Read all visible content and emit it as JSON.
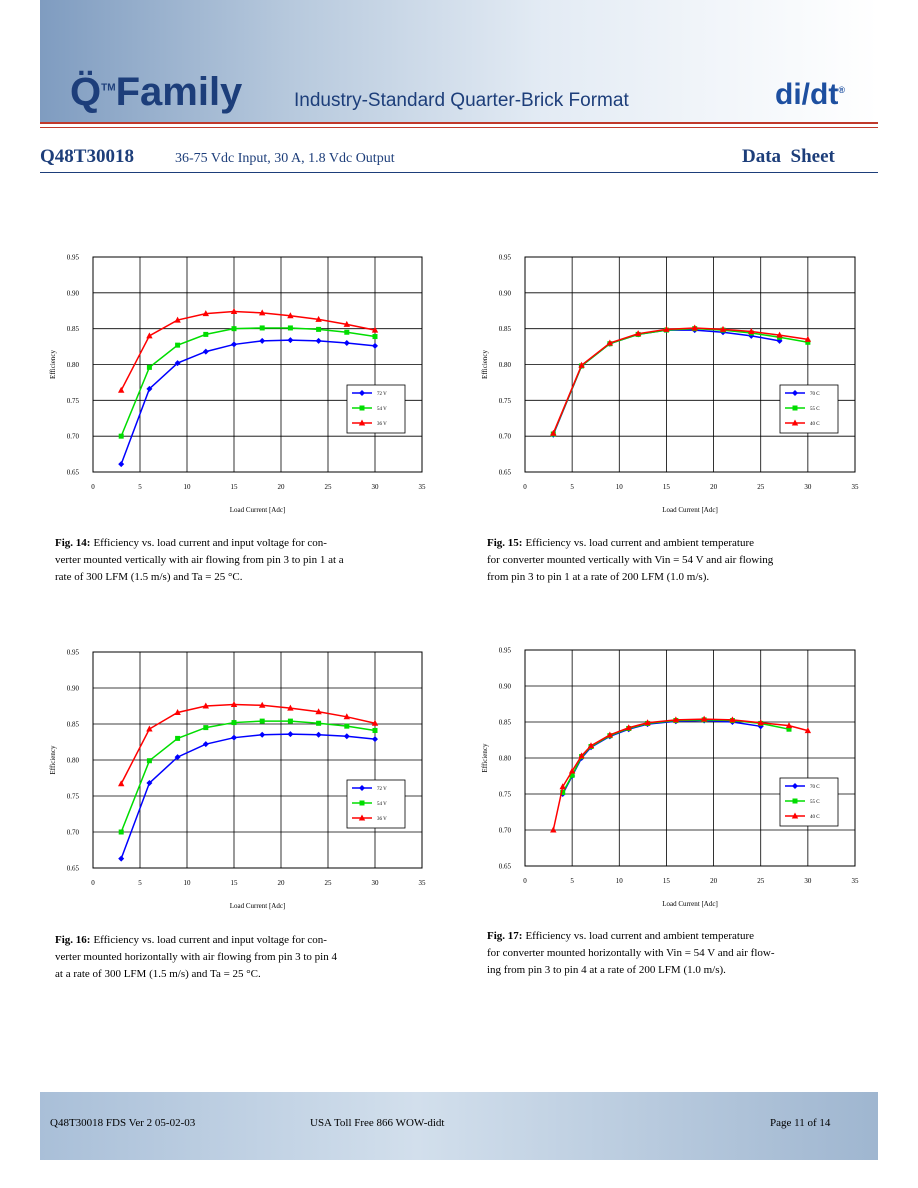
{
  "header": {
    "logo": "Q̈",
    "logo_tm": "TM",
    "logo_family": "Family",
    "tagline": "Industry-Standard Quarter-Brick Format",
    "brand": "di/dt",
    "brand_mark": "®",
    "model": "Q48T30018",
    "description": "36-75 Vdc Input, 30 A, 1.8 Vdc Output",
    "doc_type": "Data  Sheet"
  },
  "chart_data": [
    {
      "type": "line",
      "y_label": "Efficiency",
      "x_label": "Load Current [Adc]",
      "legend": "lower right",
      "grid": true,
      "x": [
        3,
        6,
        9,
        12,
        15,
        18,
        21,
        24,
        27,
        30
      ],
      "xlim": [
        0,
        35
      ],
      "xticks": [
        0,
        5,
        10,
        15,
        20,
        25,
        30,
        35
      ],
      "ylim": [
        0.65,
        0.95
      ],
      "yticks": [
        0.65,
        {
          "value": 0.7,
          "label": "0.70"
        },
        0.75,
        {
          "value": 0.8,
          "label": "0.80"
        },
        0.85,
        {
          "value": 0.9,
          "label": "0.90"
        },
        0.95
      ],
      "series": [
        {
          "name": "72 V",
          "color": "#0000ff",
          "marker": "diamond",
          "values": [
            0.661,
            0.766,
            0.802,
            0.818,
            0.828,
            0.833,
            0.834,
            0.833,
            0.83,
            0.826
          ]
        },
        {
          "name": "54 V",
          "color": "#00dd00",
          "marker": "square",
          "values": [
            0.7,
            0.796,
            0.827,
            0.842,
            0.85,
            0.851,
            0.851,
            0.849,
            0.845,
            0.839
          ]
        },
        {
          "name": "36 V",
          "color": "#ff0000",
          "marker": "triangle",
          "values": [
            0.764,
            0.84,
            0.862,
            0.871,
            0.874,
            0.872,
            0.868,
            0.863,
            0.856,
            0.848
          ]
        }
      ]
    },
    {
      "type": "line",
      "y_label": "Efficiency",
      "x_label": "Load Current [Adc]",
      "legend": "lower right",
      "grid": true,
      "x": [
        3,
        6,
        9,
        12,
        15,
        18,
        21,
        24,
        27,
        30
      ],
      "xlim": [
        0,
        35
      ],
      "xticks": [
        0,
        5,
        10,
        15,
        20,
        25,
        30,
        35
      ],
      "ylim": [
        0.65,
        0.95
      ],
      "yticks": [
        0.65,
        {
          "value": 0.7,
          "label": "0.70"
        },
        0.75,
        {
          "value": 0.8,
          "label": "0.80"
        },
        0.85,
        {
          "value": 0.9,
          "label": "0.90"
        },
        0.95
      ],
      "series": [
        {
          "name": "70 C",
          "color": "#0000ff",
          "marker": "diamond",
          "values": [
            0.702,
            0.798,
            0.829,
            0.842,
            0.848,
            0.848,
            0.845,
            0.84,
            0.833,
            null
          ]
        },
        {
          "name": "55 C",
          "color": "#00dd00",
          "marker": "square",
          "values": [
            0.703,
            0.798,
            0.829,
            0.842,
            0.848,
            0.85,
            0.848,
            0.844,
            0.838,
            0.831
          ]
        },
        {
          "name": "40 C",
          "color": "#ff0000",
          "marker": "triangle",
          "values": [
            0.704,
            0.799,
            0.83,
            0.843,
            0.849,
            0.851,
            0.849,
            0.846,
            0.841,
            0.835
          ]
        }
      ]
    },
    {
      "type": "line",
      "y_label": "Efficiency",
      "x_label": "Load Current [Adc]",
      "legend": "lower right",
      "grid": true,
      "x": [
        3,
        6,
        9,
        12,
        15,
        18,
        21,
        24,
        27,
        30
      ],
      "xlim": [
        0,
        35
      ],
      "xticks": [
        0,
        5,
        10,
        15,
        20,
        25,
        30,
        35
      ],
      "ylim": [
        0.65,
        0.95
      ],
      "yticks": [
        0.65,
        {
          "value": 0.7,
          "label": "0.70"
        },
        0.75,
        {
          "value": 0.8,
          "label": "0.80"
        },
        0.85,
        {
          "value": 0.9,
          "label": "0.90"
        },
        0.95
      ],
      "series": [
        {
          "name": "72 V",
          "color": "#0000ff",
          "marker": "diamond",
          "values": [
            0.663,
            0.768,
            0.804,
            0.822,
            0.831,
            0.835,
            0.836,
            0.835,
            0.833,
            0.829
          ]
        },
        {
          "name": "54 V",
          "color": "#00dd00",
          "marker": "square",
          "values": [
            0.7,
            0.799,
            0.83,
            0.845,
            0.852,
            0.854,
            0.854,
            0.851,
            0.847,
            0.841
          ]
        },
        {
          "name": "36 V",
          "color": "#ff0000",
          "marker": "triangle",
          "values": [
            0.767,
            0.843,
            0.866,
            0.875,
            0.877,
            0.876,
            0.872,
            0.867,
            0.86,
            0.851
          ]
        }
      ]
    },
    {
      "type": "line",
      "y_label": "Efficiency",
      "x_label": "Load Current [Adc]",
      "legend": "lower right",
      "grid": true,
      "x": [
        3,
        4,
        5,
        6,
        7,
        9,
        11,
        13,
        16,
        19,
        22,
        25,
        28,
        30
      ],
      "xlim": [
        0,
        35
      ],
      "xticks": [
        0,
        5,
        10,
        15,
        20,
        25,
        30,
        35
      ],
      "ylim": [
        0.65,
        0.95
      ],
      "yticks": [
        0.65,
        {
          "value": 0.7,
          "label": "0.70"
        },
        0.75,
        {
          "value": 0.8,
          "label": "0.80"
        },
        0.85,
        {
          "value": 0.9,
          "label": "0.90"
        },
        0.95
      ],
      "series": [
        {
          "name": "70 C",
          "color": "#0000ff",
          "marker": "diamond",
          "values": [
            null,
            0.75,
            0.775,
            0.8,
            0.815,
            0.83,
            0.84,
            0.847,
            0.851,
            0.852,
            0.85,
            0.844,
            null,
            null
          ]
        },
        {
          "name": "55 C",
          "color": "#00dd00",
          "marker": "square",
          "values": [
            null,
            0.752,
            0.776,
            0.802,
            0.816,
            0.831,
            0.841,
            0.848,
            0.852,
            0.853,
            0.852,
            0.848,
            0.84,
            null
          ]
        },
        {
          "name": "40 C",
          "color": "#ff0000",
          "marker": "triangle",
          "values": [
            0.7,
            0.76,
            0.782,
            0.803,
            0.817,
            0.832,
            0.842,
            0.849,
            0.853,
            0.854,
            0.853,
            0.849,
            0.845,
            0.838
          ]
        }
      ]
    }
  ],
  "captions": [
    {
      "label": "Fig. 14:",
      "lines": [
        "Efficiency vs. load current and input voltage for con-",
        "verter mounted vertically with air flowing from pin 3 to pin 1 at a",
        "rate of 300 LFM (1.5 m/s) and Ta = 25 °C."
      ]
    },
    {
      "label": "Fig. 15:",
      "lines": [
        "Efficiency vs. load current and ambient temperature",
        "for converter mounted vertically with Vin = 54 V and air flowing",
        "from pin 3 to pin 1 at a rate of 200 LFM (1.0 m/s)."
      ]
    },
    {
      "label": "Fig. 16:",
      "lines": [
        "Efficiency vs. load current and input voltage for con-",
        "verter mounted horizontally with air flowing from pin 3 to pin 4",
        "at a rate of 300 LFM (1.5 m/s) and Ta = 25 °C."
      ]
    },
    {
      "label": "Fig. 17:",
      "lines": [
        "Efficiency vs. load current and ambient temperature",
        "for converter mounted horizontally with Vin = 54 V and air flow-",
        "ing from pin 3 to pin 4 at a rate of 200 LFM (1.0 m/s)."
      ]
    }
  ],
  "footer": {
    "left": "Q48T30018 FDS Ver 2 05-02-03",
    "center": "USA Toll Free 866 WOW-didt",
    "right": "Page 11 of 14"
  }
}
